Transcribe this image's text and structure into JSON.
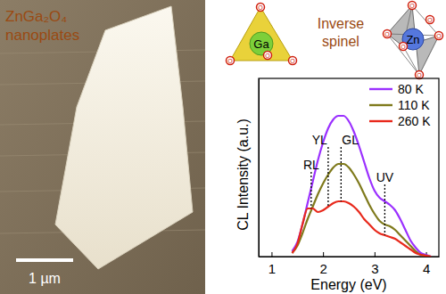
{
  "chart_data": {
    "type": "line",
    "x_label": "Energy (eV)",
    "y_label": "CL Intensity (a.u.)",
    "x": [
      1.4,
      1.5,
      1.6,
      1.7,
      1.8,
      1.9,
      2.0,
      2.1,
      2.2,
      2.3,
      2.4,
      2.5,
      2.6,
      2.7,
      2.8,
      2.9,
      3.0,
      3.1,
      3.2,
      3.3,
      3.4,
      3.5,
      3.6,
      3.7,
      3.8,
      3.9,
      4.0,
      4.1
    ],
    "series": [
      {
        "name": "80 K",
        "color": "#9b30ff",
        "values": [
          0.03,
          0.08,
          0.18,
          0.3,
          0.42,
          0.54,
          0.64,
          0.72,
          0.77,
          0.79,
          0.79,
          0.76,
          0.7,
          0.62,
          0.53,
          0.44,
          0.37,
          0.33,
          0.31,
          0.29,
          0.26,
          0.21,
          0.15,
          0.09,
          0.05,
          0.02,
          0.01,
          0.0
        ]
      },
      {
        "name": "110 K",
        "color": "#7f7a1c",
        "values": [
          0.02,
          0.06,
          0.13,
          0.21,
          0.28,
          0.35,
          0.41,
          0.46,
          0.5,
          0.52,
          0.52,
          0.5,
          0.46,
          0.41,
          0.35,
          0.29,
          0.24,
          0.2,
          0.18,
          0.17,
          0.15,
          0.12,
          0.09,
          0.06,
          0.03,
          0.01,
          0.005,
          0.0
        ]
      },
      {
        "name": "260 K",
        "color": "#e8291c",
        "values": [
          0.02,
          0.07,
          0.18,
          0.27,
          0.27,
          0.25,
          0.26,
          0.28,
          0.3,
          0.31,
          0.31,
          0.3,
          0.28,
          0.25,
          0.21,
          0.18,
          0.15,
          0.13,
          0.12,
          0.11,
          0.1,
          0.08,
          0.06,
          0.04,
          0.02,
          0.01,
          0.005,
          0.0
        ]
      }
    ],
    "xlim": [
      0.75,
      4.25
    ],
    "xticks": [
      1,
      2,
      3,
      4
    ],
    "ylim": [
      0,
      1
    ],
    "tick_labels": "x",
    "legend": "upper right",
    "line_style": "solid",
    "annotations": [
      {
        "text": "RL",
        "x": 1.77
      },
      {
        "text": "YL",
        "x": 2.1
      },
      {
        "text": "GL",
        "x": 2.35
      },
      {
        "text": "UV",
        "x": 3.2
      }
    ]
  },
  "image": {
    "label": [
      "ZnGa₂O₄",
      "nanoplates"
    ],
    "scale_bar": "1 µm"
  },
  "structure": {
    "title": [
      "Inverse",
      "spinel"
    ],
    "tetrahedron_center": "Ga",
    "octahedron_center": "Zn",
    "vertex_atom": "O"
  }
}
